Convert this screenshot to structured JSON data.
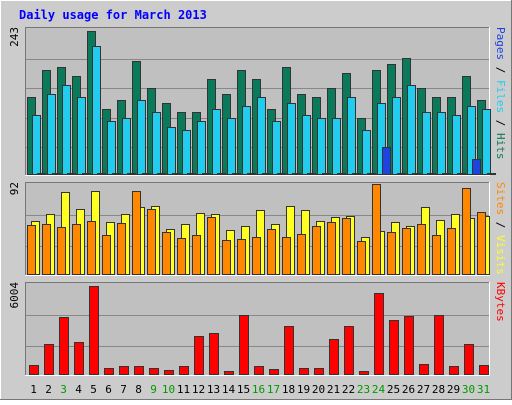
{
  "colors": {
    "background": "#cccccc",
    "panel": "#c0c0c0",
    "frame_light": "#ffffff",
    "frame_dark": "#777777",
    "title": "#0000ff",
    "day_normal": "#000000",
    "day_weekend": "#009900",
    "hits": "#0b7a5a",
    "files": "#22ccee",
    "pages": "#1e44dd",
    "visits": "#ffff22",
    "sites": "#ff8800",
    "kbytes": "#ff0000",
    "outline": "#333333",
    "gridline": "#888888"
  },
  "chart_data": {
    "type": "bar",
    "title": "Daily usage for March 2013",
    "categories": [
      "1",
      "2",
      "3",
      "4",
      "5",
      "6",
      "7",
      "8",
      "9",
      "10",
      "11",
      "12",
      "13",
      "14",
      "15",
      "16",
      "17",
      "18",
      "19",
      "20",
      "21",
      "22",
      "23",
      "24",
      "25",
      "26",
      "27",
      "28",
      "29",
      "30",
      "31"
    ],
    "weekend_days": [
      "3",
      "9",
      "10",
      "16",
      "17",
      "23",
      "24",
      "30",
      "31"
    ],
    "panels": [
      {
        "name": "requests",
        "max_label": "243",
        "ymax": 243,
        "right_label_parts": [
          {
            "text": "Pages",
            "color_key": "pages"
          },
          {
            "text": " / ",
            "color_key": "day_normal"
          },
          {
            "text": "Files",
            "color_key": "files"
          },
          {
            "text": " / ",
            "color_key": "day_normal"
          },
          {
            "text": "Hits",
            "color_key": "hits"
          }
        ],
        "series": [
          {
            "name": "Hits",
            "color_key": "hits",
            "values": [
              130,
              175,
              180,
              165,
              240,
              110,
              125,
              190,
              145,
              120,
              105,
              105,
              160,
              135,
              175,
              160,
              110,
              180,
              135,
              130,
              145,
              170,
              95,
              175,
              185,
              195,
              145,
              130,
              130,
              165,
              125
            ]
          },
          {
            "name": "Files",
            "color_key": "files",
            "values": [
              100,
              135,
              150,
              130,
              215,
              90,
              95,
              125,
              105,
              80,
              75,
              90,
              110,
              95,
              115,
              130,
              90,
              120,
              100,
              95,
              95,
              130,
              75,
              120,
              130,
              150,
              105,
              105,
              100,
              115,
              110
            ]
          },
          {
            "name": "Pages",
            "color_key": "pages",
            "values": [
              3,
              3,
              3,
              3,
              3,
              3,
              3,
              3,
              3,
              3,
              3,
              3,
              3,
              3,
              3,
              3,
              3,
              3,
              3,
              3,
              3,
              3,
              3,
              47,
              3,
              3,
              3,
              3,
              3,
              27,
              3
            ]
          }
        ]
      },
      {
        "name": "visits",
        "max_label": "92",
        "ymax": 92,
        "right_label_parts": [
          {
            "text": "Sites",
            "color_key": "sites"
          },
          {
            "text": " / ",
            "color_key": "day_normal"
          },
          {
            "text": "Visits",
            "color_key": "visits"
          }
        ],
        "series": [
          {
            "name": "Visits",
            "color_key": "visits",
            "values": [
              55,
              62,
              84,
              67,
              85,
              54,
              62,
              69,
              70,
              47,
              52,
              63,
              62,
              45,
              50,
              66,
              52,
              70,
              66,
              55,
              59,
              60,
              38,
              44,
              54,
              50,
              69,
              56,
              62,
              58,
              60
            ]
          },
          {
            "name": "Sites",
            "color_key": "sites",
            "values": [
              51,
              52,
              49,
              52,
              55,
              40,
              53,
              85,
              67,
              43,
              37,
              40,
              59,
              35,
              36,
              38,
              47,
              38,
              41,
              50,
              54,
              58,
              34,
              92,
              43,
              48,
              52,
              40,
              48,
              88,
              64
            ]
          }
        ]
      },
      {
        "name": "kbytes",
        "max_label": "6004",
        "ymax": 6004,
        "right_label_parts": [
          {
            "text": "KBytes",
            "color_key": "kbytes"
          }
        ],
        "series": [
          {
            "name": "KBytes",
            "color_key": "kbytes",
            "values": [
              650,
              2050,
              3800,
              2150,
              5900,
              460,
              600,
              620,
              480,
              330,
              570,
              2600,
              2750,
              270,
              3930,
              600,
              420,
              3240,
              470,
              490,
              2360,
              3250,
              250,
              5400,
              3600,
              3900,
              740,
              3930,
              610,
              2070,
              680
            ]
          }
        ]
      }
    ]
  }
}
